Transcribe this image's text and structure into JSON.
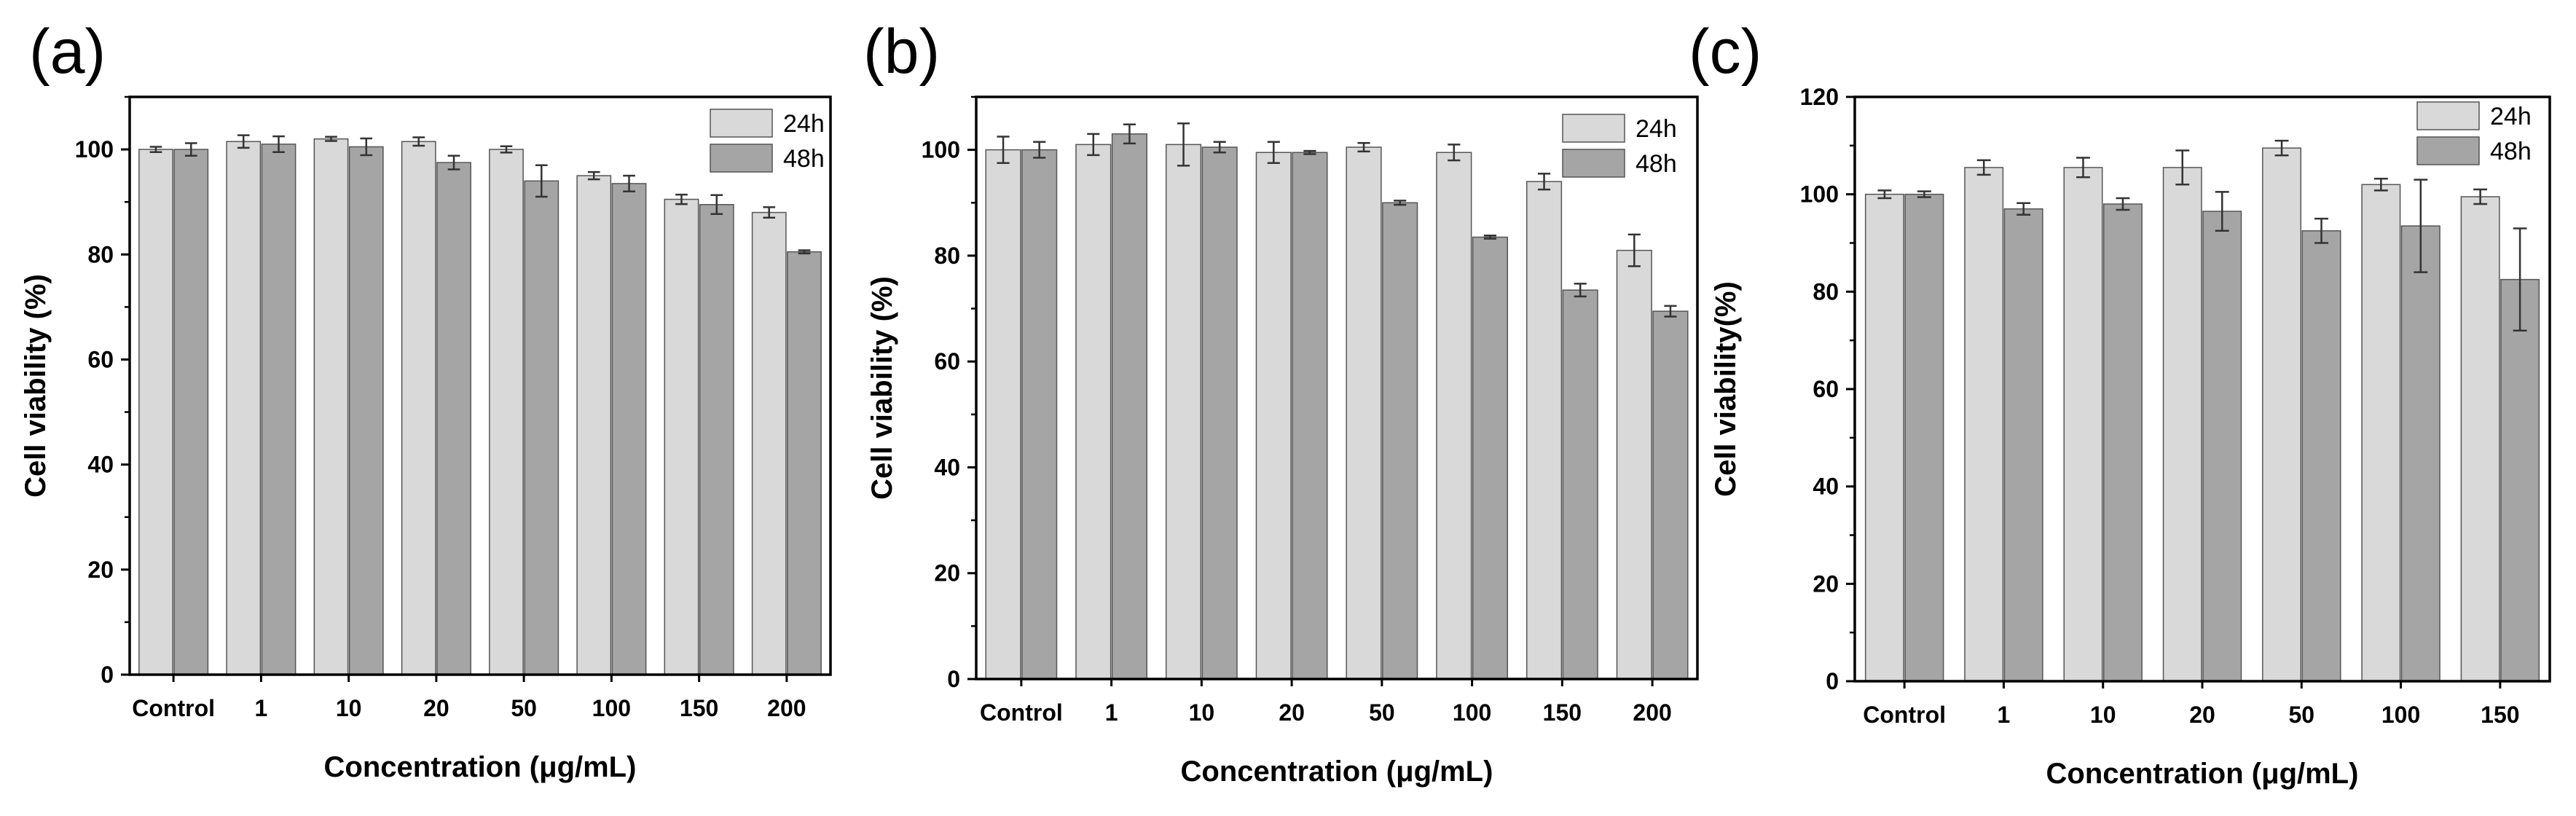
{
  "colors": {
    "series_24h": "#d9d9d9",
    "series_48h": "#a5a5a5",
    "bar_edge": "#555555",
    "axis": "#000000"
  },
  "chart_data": [
    {
      "type": "bar",
      "panel_label": "(a)",
      "categories": [
        "Control",
        "1",
        "10",
        "20",
        "50",
        "100",
        "150",
        "200"
      ],
      "xlabel": "Concentration (μg/mL)",
      "ylabel": "Cell viability (%)",
      "ylim": [
        0,
        110
      ],
      "yticks": [
        0,
        20,
        40,
        60,
        80,
        100
      ],
      "legend_position": "top-right",
      "series": [
        {
          "name": "24h",
          "values": [
            100.0,
            101.5,
            102.0,
            101.5,
            100.0,
            95.0,
            90.5,
            88.0
          ],
          "errors": [
            0.5,
            1.2,
            0.4,
            0.8,
            0.6,
            0.7,
            0.9,
            1.0
          ]
        },
        {
          "name": "48h",
          "values": [
            100.0,
            101.0,
            100.5,
            97.5,
            94.0,
            93.5,
            89.5,
            80.5
          ],
          "errors": [
            1.2,
            1.5,
            1.6,
            1.3,
            3.0,
            1.5,
            1.8,
            0.3
          ]
        }
      ]
    },
    {
      "type": "bar",
      "panel_label": "(b)",
      "categories": [
        "Control",
        "1",
        "10",
        "20",
        "50",
        "100",
        "150",
        "200"
      ],
      "xlabel": "Concentration (μg/mL)",
      "ylabel": "Cell viability (%)",
      "ylim": [
        0,
        110
      ],
      "yticks": [
        0,
        20,
        40,
        60,
        80,
        100
      ],
      "legend_position": "top-right",
      "series": [
        {
          "name": "24h",
          "values": [
            100.0,
            101.0,
            101.0,
            99.5,
            100.5,
            99.5,
            94.0,
            81.0
          ],
          "errors": [
            2.5,
            2.0,
            4.0,
            2.0,
            0.8,
            1.5,
            1.5,
            3.0
          ]
        },
        {
          "name": "48h",
          "values": [
            100.0,
            103.0,
            100.5,
            99.5,
            90.0,
            83.5,
            73.5,
            69.5
          ],
          "errors": [
            1.5,
            1.8,
            1.0,
            0.3,
            0.4,
            0.3,
            1.2,
            1.0
          ]
        }
      ]
    },
    {
      "type": "bar",
      "panel_label": "(c)",
      "categories": [
        "Control",
        "1",
        "10",
        "20",
        "50",
        "100",
        "150"
      ],
      "xlabel": "Concentration (μg/mL)",
      "ylabel": "Cell viability(%)",
      "ylim": [
        0,
        120
      ],
      "yticks": [
        0,
        20,
        40,
        60,
        80,
        100,
        120
      ],
      "legend_position": "top-right",
      "series": [
        {
          "name": "24h",
          "values": [
            100.0,
            105.5,
            105.5,
            105.5,
            109.5,
            102.0,
            99.5
          ],
          "errors": [
            0.8,
            1.5,
            2.0,
            3.5,
            1.5,
            1.2,
            1.5
          ]
        },
        {
          "name": "48h",
          "values": [
            100.0,
            97.0,
            98.0,
            96.5,
            92.5,
            93.5,
            82.5
          ],
          "errors": [
            0.6,
            1.2,
            1.2,
            4.0,
            2.5,
            9.5,
            10.5
          ]
        }
      ]
    }
  ]
}
